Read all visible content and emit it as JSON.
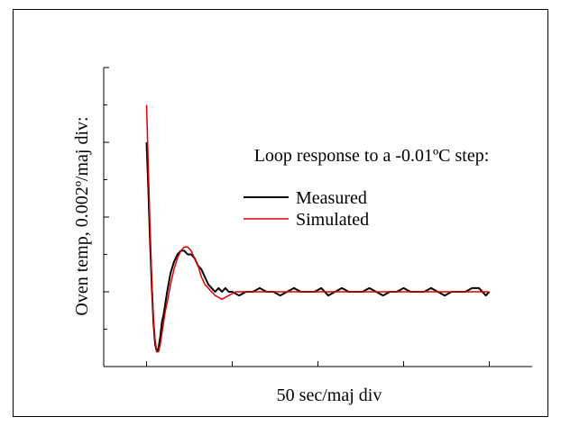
{
  "chart_data": {
    "type": "line",
    "title": "Loop response to a -0.01ºC step:",
    "xlabel": "50 sec/maj div",
    "ylabel": "Oven temp, 0.002º/maj div:",
    "x_units": "sec",
    "y_units": "ºC",
    "xlim": [
      -25,
      225
    ],
    "ylim": [
      -0.002,
      0.006
    ],
    "x_major": 50,
    "y_major": 0.002,
    "grid": false,
    "legend_position": "center-right",
    "legend": [
      "Measured",
      "Simulated"
    ],
    "series": [
      {
        "name": "Measured",
        "color": "#000000",
        "x": [
          0,
          1,
          2,
          3,
          4,
          5,
          6,
          7,
          8,
          9,
          10,
          11,
          12,
          14,
          16,
          18,
          20,
          22,
          24,
          26,
          28,
          30,
          32,
          34,
          36,
          38,
          40,
          42,
          44,
          46,
          48,
          50,
          54,
          58,
          62,
          66,
          70,
          74,
          78,
          82,
          86,
          90,
          94,
          98,
          102,
          106,
          110,
          114,
          118,
          122,
          126,
          130,
          134,
          138,
          142,
          146,
          150,
          154,
          158,
          162,
          166,
          170,
          174,
          178,
          182,
          186,
          190,
          194,
          198,
          200
        ],
        "values": [
          0.004,
          0.0028,
          0.0014,
          0.0002,
          -0.0008,
          -0.0014,
          -0.0016,
          -0.0015,
          -0.0012,
          -0.0008,
          -0.0006,
          -0.0003,
          0.0,
          0.0005,
          0.0008,
          0.001,
          0.0011,
          0.0011,
          0.001,
          0.001,
          0.0009,
          0.0007,
          0.0006,
          0.0004,
          0.0002,
          0.0001,
          0.0,
          0.0001,
          0.0,
          0.0001,
          0.0,
          0.0,
          -0.0001,
          0.0,
          0.0,
          0.0001,
          0.0,
          0.0,
          -0.0001,
          0.0,
          0.0001,
          0.0,
          0.0,
          0.0,
          0.0001,
          -0.0001,
          0.0,
          0.0001,
          0.0,
          0.0,
          0.0,
          0.0001,
          0.0,
          -0.0001,
          0.0,
          0.0,
          0.0001,
          0.0,
          0.0,
          0.0,
          0.0001,
          0.0,
          -0.0001,
          0.0,
          0.0,
          0.0,
          0.0001,
          0.0001,
          -0.0001,
          0.0
        ]
      },
      {
        "name": "Simulated",
        "color": "#dd0000",
        "x": [
          0,
          1,
          2,
          3,
          4,
          5,
          6,
          7,
          8,
          9,
          10,
          11,
          12,
          14,
          16,
          18,
          20,
          22,
          24,
          26,
          28,
          30,
          32,
          34,
          36,
          38,
          40,
          44,
          48,
          52,
          56,
          60,
          70,
          80,
          90,
          100,
          120,
          140,
          160,
          180,
          200
        ],
        "values": [
          0.005,
          0.0034,
          0.0018,
          0.0004,
          -0.0007,
          -0.0013,
          -0.0016,
          -0.0016,
          -0.0014,
          -0.0011,
          -0.0008,
          -0.0005,
          -0.0003,
          0.0002,
          0.0006,
          0.0009,
          0.0011,
          0.0012,
          0.0012,
          0.0011,
          0.0009,
          0.0007,
          0.0004,
          0.0002,
          0.0001,
          0.0,
          -0.0001,
          -0.0002,
          -0.0001,
          0.0,
          0.0,
          0.0,
          0.0,
          0.0,
          0.0,
          0.0,
          0.0,
          0.0,
          0.0,
          0.0,
          0.0
        ]
      }
    ]
  }
}
